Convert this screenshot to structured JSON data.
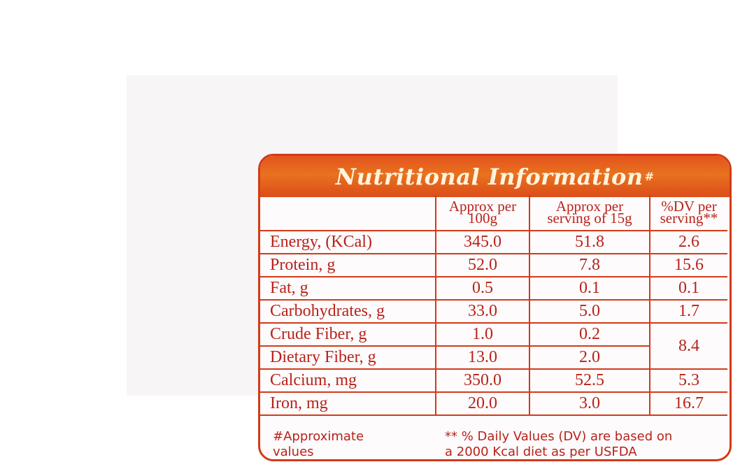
{
  "title": "Nutritional Information",
  "title_mark": "#",
  "columns": {
    "nutrient": "",
    "per_100g_line1": "Approx per",
    "per_100g_line2": "100g",
    "per_serving_line1": "Approx per",
    "per_serving_line2": "serving of 15g",
    "dv_line1": "%DV per",
    "dv_line2": "serving**"
  },
  "rows": [
    {
      "name": "Energy, (KCal)",
      "per_100g": "345.0",
      "per_serving": "51.8",
      "dv": "2.6"
    },
    {
      "name": "Protein, g",
      "per_100g": "52.0",
      "per_serving": "7.8",
      "dv": "15.6"
    },
    {
      "name": "Fat, g",
      "per_100g": "0.5",
      "per_serving": "0.1",
      "dv": "0.1"
    },
    {
      "name": "Carbohydrates, g",
      "per_100g": "33.0",
      "per_serving": "5.0",
      "dv": "1.7"
    },
    {
      "name": "Crude Fiber, g",
      "per_100g": "1.0",
      "per_serving": "0.2",
      "dv": "8.4"
    },
    {
      "name": "Dietary Fiber, g",
      "per_100g": "13.0",
      "per_serving": "2.0"
    },
    {
      "name": "Calcium, mg",
      "per_100g": "350.0",
      "per_serving": "52.5",
      "dv": "5.3"
    },
    {
      "name": "Iron, mg",
      "per_100g": "20.0",
      "per_serving": "3.0",
      "dv": "16.7"
    }
  ],
  "footnotes": {
    "approx_line1": "#Approximate",
    "approx_line2": "values",
    "dv_line1": "** % Daily Values (DV) are based on",
    "dv_line2": "a 2000 Kcal diet as per USFDA"
  },
  "colors": {
    "border": "#d13b1a",
    "text": "#b8221a",
    "header_bg": "#e4531d",
    "header_text": "#fff4df"
  }
}
